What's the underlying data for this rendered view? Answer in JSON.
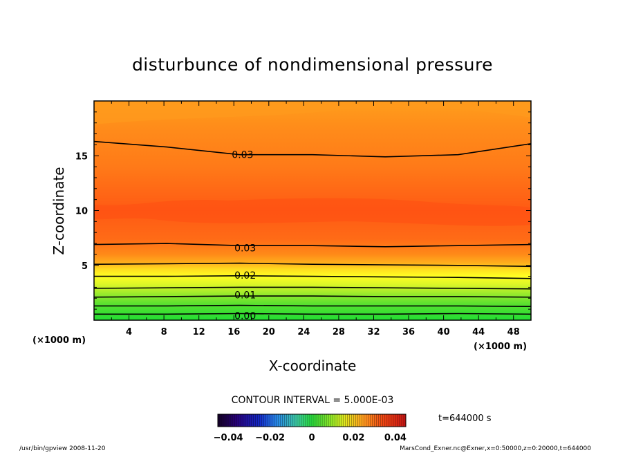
{
  "chart_data": {
    "type": "contour",
    "title": "disturbunce of nondimensional pressure",
    "xlabel": "X-coordinate",
    "ylabel": "Z-coordinate",
    "x_unit": "(×1000 m)",
    "y_unit": "(×1000 m)",
    "xlim": [
      0,
      50
    ],
    "ylim": [
      0,
      20
    ],
    "x_ticks": [
      4,
      8,
      12,
      16,
      20,
      24,
      28,
      32,
      36,
      40,
      44,
      48
    ],
    "y_ticks": [
      5,
      10,
      15
    ],
    "contour_interval_label": "CONTOUR INTERVAL = 5.000E-03",
    "contour_labels": [
      {
        "text": "0.03",
        "x": 17,
        "z": 15.1
      },
      {
        "text": "0.03",
        "x": 17.3,
        "z": 6.6
      },
      {
        "text": "0.02",
        "x": 17.3,
        "z": 4.1
      },
      {
        "text": "0.01",
        "x": 17.3,
        "z": 2.3
      },
      {
        "text": "0.00",
        "x": 17.3,
        "z": 0.4
      }
    ],
    "contours": [
      {
        "level": 0.0,
        "z": [
          0.55,
          0.55,
          0.6,
          0.55,
          0.55,
          0.6,
          0.55
        ]
      },
      {
        "level": 0.005,
        "z": [
          1.3,
          1.3,
          1.35,
          1.3,
          1.3,
          1.3,
          1.25
        ]
      },
      {
        "level": 0.01,
        "z": [
          2.1,
          2.15,
          2.2,
          2.2,
          2.15,
          2.15,
          2.1
        ]
      },
      {
        "level": 0.015,
        "z": [
          2.9,
          2.95,
          3.0,
          3.0,
          2.95,
          2.9,
          2.85
        ]
      },
      {
        "level": 0.02,
        "z": [
          4.0,
          4.0,
          4.05,
          4.0,
          3.95,
          3.9,
          3.8
        ]
      },
      {
        "level": 0.025,
        "z": [
          5.1,
          5.15,
          5.2,
          5.1,
          5.05,
          5.0,
          4.9
        ]
      },
      {
        "level": 0.03,
        "z": [
          6.9,
          7.0,
          6.8,
          6.8,
          6.7,
          6.8,
          6.9
        ]
      },
      {
        "level": 0.03,
        "z": [
          16.3,
          15.8,
          15.1,
          15.1,
          14.9,
          15.1,
          16.1
        ]
      }
    ],
    "colorbar": {
      "min": -0.045,
      "max": 0.045,
      "tick_labels": [
        "−0.04",
        "−0.02",
        "0",
        "0.02",
        "0.04"
      ],
      "tick_values": [
        -0.04,
        -0.02,
        0,
        0.02,
        0.04
      ]
    },
    "time_label": "t=644000 s",
    "footer_left": "/usr/bin/gpview  2008-11-20",
    "footer_right": "MarsCond_Exner.nc@Exner,x=0:50000,z=0:20000,t=644000",
    "colors": {
      "green": "#33e633",
      "yellow": "#ffff22",
      "orange": "#ff8c1a",
      "deep_orange": "#ff5a14"
    }
  }
}
